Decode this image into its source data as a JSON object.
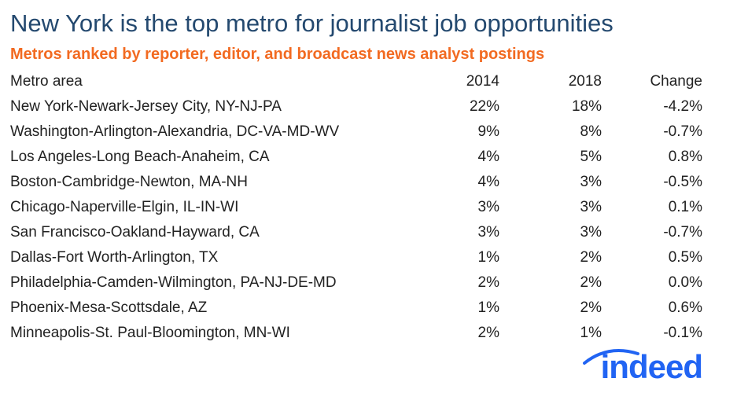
{
  "header": {
    "title": "New York is the top metro for journalist job opportunities",
    "subtitle": "Metros ranked by reporter, editor, and broadcast news analyst postings"
  },
  "table": {
    "columns": [
      "Metro area",
      "2014",
      "2018",
      "Change"
    ],
    "rows": [
      [
        "New York-Newark-Jersey City, NY-NJ-PA",
        "22%",
        "18%",
        "-4.2%"
      ],
      [
        "Washington-Arlington-Alexandria, DC-VA-MD-WV",
        "9%",
        "8%",
        "-0.7%"
      ],
      [
        "Los Angeles-Long Beach-Anaheim, CA",
        "4%",
        "5%",
        "0.8%"
      ],
      [
        "Boston-Cambridge-Newton, MA-NH",
        "4%",
        "3%",
        "-0.5%"
      ],
      [
        "Chicago-Naperville-Elgin, IL-IN-WI",
        "3%",
        "3%",
        "0.1%"
      ],
      [
        "San Francisco-Oakland-Hayward, CA",
        "3%",
        "3%",
        "-0.7%"
      ],
      [
        "Dallas-Fort Worth-Arlington, TX",
        "1%",
        "2%",
        "0.5%"
      ],
      [
        "Philadelphia-Camden-Wilmington, PA-NJ-DE-MD",
        "2%",
        "2%",
        "0.0%"
      ],
      [
        "Phoenix-Mesa-Scottsdale, AZ",
        "1%",
        "2%",
        "0.6%"
      ],
      [
        "Minneapolis-St. Paul-Bloomington, MN-WI",
        "2%",
        "1%",
        "-0.1%"
      ]
    ]
  },
  "logo": {
    "text": "indeed"
  }
}
